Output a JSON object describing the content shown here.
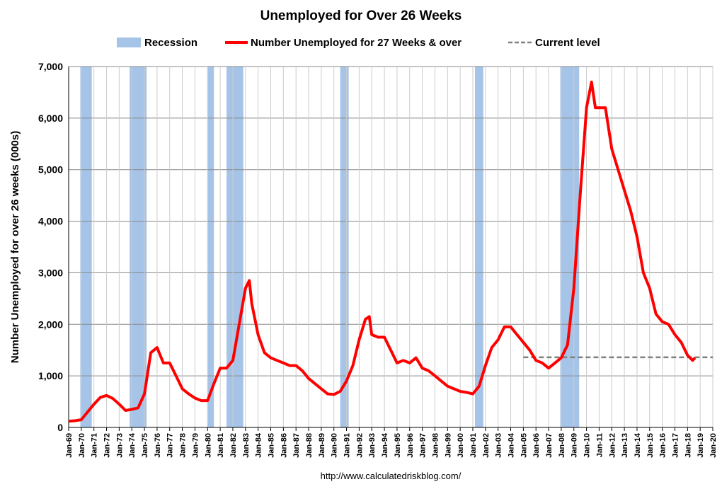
{
  "chart_data": {
    "type": "line",
    "title": "Unemployed for Over 26 Weeks",
    "y_label": "Number Unemployed for over 26 weeks (000s)",
    "source": "http://www.calculatedriskblog.com/",
    "grid": true,
    "xlim": [
      1969,
      2020
    ],
    "ylim": [
      0,
      7000
    ],
    "yticks": [
      0,
      {
        "value": 1000,
        "label": "1,000"
      },
      {
        "value": 2000,
        "label": "2,000"
      },
      {
        "value": 3000,
        "label": "3,000"
      },
      {
        "value": 4000,
        "label": "4,000"
      },
      {
        "value": 5000,
        "label": "5,000"
      },
      {
        "value": 6000,
        "label": "6,000"
      },
      {
        "value": 7000,
        "label": "7,000"
      }
    ],
    "xticks": [
      {
        "value": 1969,
        "label": "Jan-69"
      },
      {
        "value": 1970,
        "label": "Jan-70"
      },
      {
        "value": 1971,
        "label": "Jan-71"
      },
      {
        "value": 1972,
        "label": "Jan-72"
      },
      {
        "value": 1973,
        "label": "Jan-73"
      },
      {
        "value": 1974,
        "label": "Jan-74"
      },
      {
        "value": 1975,
        "label": "Jan-75"
      },
      {
        "value": 1976,
        "label": "Jan-76"
      },
      {
        "value": 1977,
        "label": "Jan-77"
      },
      {
        "value": 1978,
        "label": "Jan-78"
      },
      {
        "value": 1979,
        "label": "Jan-79"
      },
      {
        "value": 1980,
        "label": "Jan-80"
      },
      {
        "value": 1981,
        "label": "Jan-81"
      },
      {
        "value": 1982,
        "label": "Jan-82"
      },
      {
        "value": 1983,
        "label": "Jan-83"
      },
      {
        "value": 1984,
        "label": "Jan-84"
      },
      {
        "value": 1985,
        "label": "Jan-85"
      },
      {
        "value": 1986,
        "label": "Jan-86"
      },
      {
        "value": 1987,
        "label": "Jan-87"
      },
      {
        "value": 1988,
        "label": "Jan-88"
      },
      {
        "value": 1989,
        "label": "Jan-89"
      },
      {
        "value": 1990,
        "label": "Jan-90"
      },
      {
        "value": 1991,
        "label": "Jan-91"
      },
      {
        "value": 1992,
        "label": "Jan-92"
      },
      {
        "value": 1993,
        "label": "Jan-93"
      },
      {
        "value": 1994,
        "label": "Jan-94"
      },
      {
        "value": 1995,
        "label": "Jan-95"
      },
      {
        "value": 1996,
        "label": "Jan-96"
      },
      {
        "value": 1997,
        "label": "Jan-97"
      },
      {
        "value": 1998,
        "label": "Jan-98"
      },
      {
        "value": 1999,
        "label": "Jan-99"
      },
      {
        "value": 2000,
        "label": "Jan-00"
      },
      {
        "value": 2001,
        "label": "Jan-01"
      },
      {
        "value": 2002,
        "label": "Jan-02"
      },
      {
        "value": 2003,
        "label": "Jan-03"
      },
      {
        "value": 2004,
        "label": "Jan-04"
      },
      {
        "value": 2005,
        "label": "Jan-05"
      },
      {
        "value": 2006,
        "label": "Jan-06"
      },
      {
        "value": 2007,
        "label": "Jan-07"
      },
      {
        "value": 2008,
        "label": "Jan-08"
      },
      {
        "value": 2009,
        "label": "Jan-09"
      },
      {
        "value": 2010,
        "label": "Jan-10"
      },
      {
        "value": 2011,
        "label": "Jan-11"
      },
      {
        "value": 2012,
        "label": "Jan-12"
      },
      {
        "value": 2013,
        "label": "Jan-13"
      },
      {
        "value": 2014,
        "label": "Jan-14"
      },
      {
        "value": 2015,
        "label": "Jan-15"
      },
      {
        "value": 2016,
        "label": "Jan-16"
      },
      {
        "value": 2017,
        "label": "Jan-17"
      },
      {
        "value": 2018,
        "label": "Jan-18"
      },
      {
        "value": 2019,
        "label": "Jan-19"
      },
      {
        "value": 2020,
        "label": "Jan-20"
      }
    ],
    "recessions": {
      "name": "Recession",
      "color": "#a6c4e8",
      "spans": [
        [
          1969.92,
          1970.83
        ],
        [
          1973.83,
          1975.17
        ],
        [
          1980.0,
          1980.5
        ],
        [
          1981.5,
          1982.83
        ],
        [
          1990.5,
          1991.17
        ],
        [
          2001.17,
          2001.83
        ],
        [
          2007.92,
          2009.42
        ]
      ]
    },
    "x": [
      1969.0,
      1969.5,
      1970.0,
      1970.5,
      1971.0,
      1971.5,
      1972.0,
      1972.5,
      1973.0,
      1973.5,
      1974.0,
      1974.5,
      1975.0,
      1975.5,
      1976.0,
      1976.5,
      1977.0,
      1977.5,
      1978.0,
      1978.5,
      1979.0,
      1979.5,
      1980.0,
      1980.5,
      1981.0,
      1981.5,
      1982.0,
      1982.5,
      1983.0,
      1983.3,
      1983.5,
      1984.0,
      1984.5,
      1985.0,
      1985.5,
      1986.0,
      1986.5,
      1987.0,
      1987.5,
      1988.0,
      1988.5,
      1989.0,
      1989.5,
      1990.0,
      1990.5,
      1991.0,
      1991.5,
      1992.0,
      1992.5,
      1992.8,
      1993.0,
      1993.5,
      1994.0,
      1994.5,
      1995.0,
      1995.5,
      1996.0,
      1996.5,
      1997.0,
      1997.5,
      1998.0,
      1998.5,
      1999.0,
      1999.5,
      2000.0,
      2000.5,
      2001.0,
      2001.5,
      2002.0,
      2002.5,
      2003.0,
      2003.5,
      2004.0,
      2004.5,
      2005.0,
      2005.5,
      2006.0,
      2006.5,
      2007.0,
      2007.5,
      2008.0,
      2008.5,
      2009.0,
      2009.5,
      2010.0,
      2010.4,
      2010.7,
      2011.0,
      2011.5,
      2012.0,
      2012.5,
      2013.0,
      2013.5,
      2014.0,
      2014.5,
      2015.0,
      2015.5,
      2016.0,
      2016.5,
      2017.0,
      2017.5,
      2018.0,
      2018.4,
      2018.6
    ],
    "series": [
      {
        "name": "Number Unemployed for 27 Weeks & over",
        "color": "#ff0000",
        "values": [
          120,
          130,
          150,
          300,
          450,
          580,
          620,
          560,
          450,
          330,
          350,
          380,
          650,
          1450,
          1550,
          1250,
          1250,
          1000,
          750,
          650,
          570,
          520,
          520,
          850,
          1150,
          1150,
          1300,
          2000,
          2700,
          2850,
          2400,
          1800,
          1450,
          1350,
          1300,
          1250,
          1200,
          1200,
          1100,
          950,
          850,
          750,
          650,
          640,
          700,
          900,
          1200,
          1700,
          2100,
          2150,
          1800,
          1750,
          1750,
          1500,
          1250,
          1300,
          1250,
          1350,
          1150,
          1100,
          1000,
          900,
          800,
          750,
          700,
          680,
          650,
          800,
          1200,
          1550,
          1700,
          1950,
          1950,
          1800,
          1650,
          1500,
          1300,
          1250,
          1150,
          1250,
          1350,
          1600,
          2700,
          4500,
          6200,
          6700,
          6200,
          6200,
          6200,
          5400,
          5000,
          4600,
          4200,
          3700,
          3000,
          2700,
          2200,
          2050,
          2000,
          1800,
          1650,
          1400,
          1300,
          1350
        ]
      }
    ],
    "current_level": {
      "name": "Current level",
      "value": 1360,
      "from": 2005,
      "color": "#808080"
    }
  }
}
